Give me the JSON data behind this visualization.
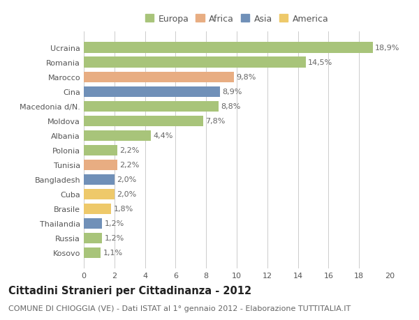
{
  "countries": [
    "Kosovo",
    "Russia",
    "Thailandia",
    "Brasile",
    "Cuba",
    "Bangladesh",
    "Tunisia",
    "Polonia",
    "Albania",
    "Moldova",
    "Macedonia d/N.",
    "Cina",
    "Marocco",
    "Romania",
    "Ucraina"
  ],
  "values": [
    1.1,
    1.2,
    1.2,
    1.8,
    2.0,
    2.0,
    2.2,
    2.2,
    4.4,
    7.8,
    8.8,
    8.9,
    9.8,
    14.5,
    18.9
  ],
  "labels": [
    "1,1%",
    "1,2%",
    "1,2%",
    "1,8%",
    "2,0%",
    "2,0%",
    "2,2%",
    "2,2%",
    "4,4%",
    "7,8%",
    "8,8%",
    "8,9%",
    "9,8%",
    "14,5%",
    "18,9%"
  ],
  "continents": [
    "Europa",
    "Europa",
    "Asia",
    "America",
    "America",
    "Asia",
    "Africa",
    "Europa",
    "Europa",
    "Europa",
    "Europa",
    "Asia",
    "Africa",
    "Europa",
    "Europa"
  ],
  "colors": {
    "Europa": "#a8c47a",
    "Africa": "#e8ad82",
    "Asia": "#7090b8",
    "America": "#eec96a"
  },
  "legend_colors": {
    "Europa": "#a8c47a",
    "Africa": "#e8ad82",
    "Asia": "#7090b8",
    "America": "#eec96a"
  },
  "xlim": [
    0,
    20
  ],
  "xticks": [
    0,
    2,
    4,
    6,
    8,
    10,
    12,
    14,
    16,
    18,
    20
  ],
  "title": "Cittadini Stranieri per Cittadinanza - 2012",
  "subtitle": "COMUNE DI CHIOGGIA (VE) - Dati ISTAT al 1° gennaio 2012 - Elaborazione TUTTITALIA.IT",
  "background_color": "#ffffff",
  "grid_color": "#cccccc",
  "bar_height": 0.72,
  "title_fontsize": 10.5,
  "subtitle_fontsize": 8,
  "label_fontsize": 8,
  "tick_fontsize": 8,
  "legend_fontsize": 9
}
